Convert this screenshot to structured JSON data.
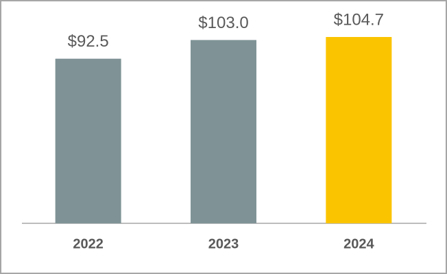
{
  "chart_data": {
    "type": "bar",
    "categories": [
      "2022",
      "2023",
      "2024"
    ],
    "values": [
      92.5,
      103.0,
      104.7
    ],
    "value_labels": [
      "$92.5",
      "$103.0",
      "$104.7"
    ],
    "colors": [
      "#7f9396",
      "#7f9396",
      "#fbc400"
    ]
  }
}
